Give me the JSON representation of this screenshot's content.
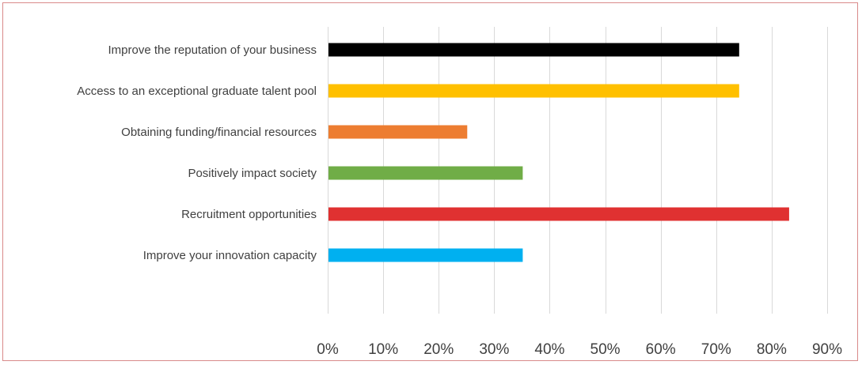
{
  "chart_data": {
    "type": "bar",
    "orientation": "horizontal",
    "categories": [
      "Improve the reputation of your business",
      "Access to an exceptional graduate talent pool",
      "Obtaining funding/financial resources",
      "Positively impact society",
      "Recruitment opportunities",
      "Improve your innovation capacity"
    ],
    "values": [
      74,
      74,
      25,
      35,
      83,
      35
    ],
    "colors": [
      "#000000",
      "#ffc000",
      "#ed7d31",
      "#70ad47",
      "#e03131",
      "#00b0f0"
    ],
    "xlim": [
      0,
      90
    ],
    "xticks": [
      "0%",
      "10%",
      "20%",
      "30%",
      "40%",
      "50%",
      "60%",
      "70%",
      "80%",
      "90%"
    ],
    "grid": true,
    "legend": "none",
    "title": "",
    "xlabel": "",
    "ylabel": ""
  }
}
